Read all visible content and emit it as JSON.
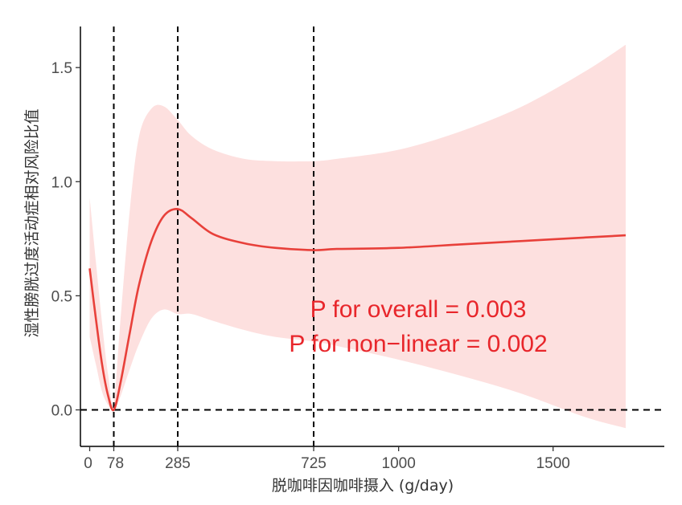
{
  "chart_data": {
    "type": "line",
    "xlabel": "脱咖啡因咖啡摄入 (g/day)",
    "ylabel": "湿性膀胱过度活动症相对风险比值",
    "xlim": [
      -30,
      1860
    ],
    "ylim": [
      -0.16,
      1.68
    ],
    "x_ticks": [
      0,
      78,
      285,
      725,
      1000,
      1500
    ],
    "x_tick_labels": [
      "0",
      "78",
      "285",
      "725",
      "1000",
      "1500"
    ],
    "y_ticks": [
      0.0,
      0.5,
      1.0,
      1.5
    ],
    "y_tick_labels": [
      "0.0",
      "0.5",
      "1.0",
      "1.5"
    ],
    "vlines": [
      78,
      285,
      725
    ],
    "hline": 0,
    "grid": false,
    "colors": {
      "line": "#e8403a",
      "band": "#fde0df",
      "ref": "#000000",
      "annotation": "#e8262b"
    },
    "series": [
      {
        "x": [
          0,
          20,
          40,
          60,
          78,
          100,
          130,
          160,
          200,
          240,
          285,
          330,
          400,
          500,
          600,
          725,
          800,
          1000,
          1200,
          1400,
          1600,
          1735
        ],
        "y": [
          0.62,
          0.4,
          0.2,
          0.06,
          0.0,
          0.12,
          0.34,
          0.55,
          0.74,
          0.85,
          0.88,
          0.84,
          0.77,
          0.73,
          0.71,
          0.7,
          0.705,
          0.71,
          0.725,
          0.74,
          0.755,
          0.765
        ],
        "lower": [
          0.32,
          0.2,
          0.08,
          0.02,
          0.0,
          0.06,
          0.18,
          0.29,
          0.4,
          0.44,
          0.42,
          0.42,
          0.39,
          0.35,
          0.32,
          0.3,
          0.28,
          0.22,
          0.15,
          0.07,
          -0.03,
          -0.08
        ],
        "upper": [
          0.93,
          0.65,
          0.38,
          0.15,
          0.03,
          0.4,
          0.88,
          1.2,
          1.32,
          1.33,
          1.27,
          1.2,
          1.14,
          1.1,
          1.09,
          1.09,
          1.1,
          1.14,
          1.22,
          1.33,
          1.48,
          1.6
        ]
      }
    ],
    "annotations": [
      "P for overall = 0.003",
      "P for non−linear = 0.002"
    ]
  }
}
